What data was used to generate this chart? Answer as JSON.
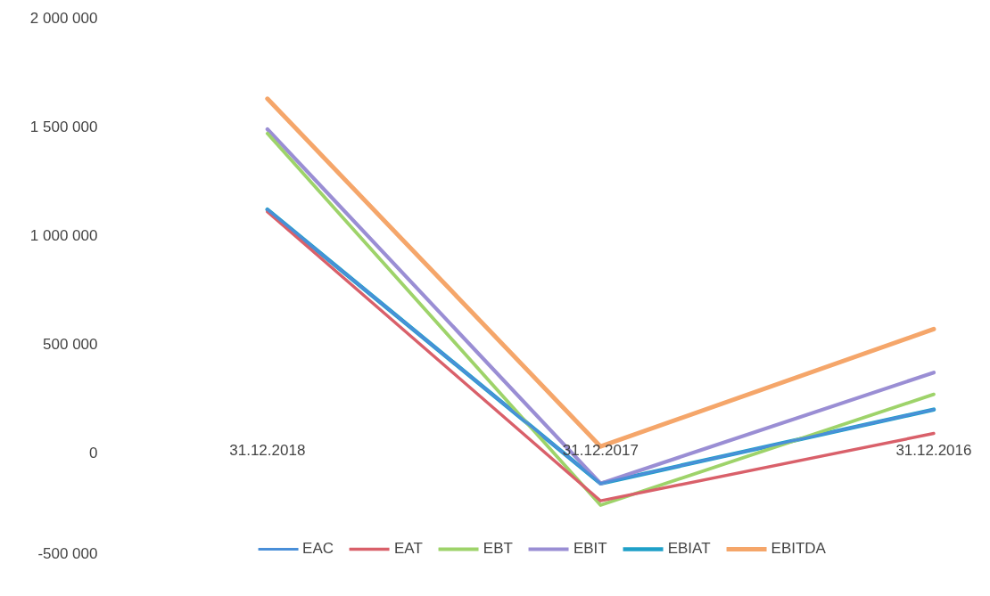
{
  "chart_data": {
    "type": "line",
    "categories": [
      "31.12.2018",
      "31.12.2017",
      "31.12.2016"
    ],
    "series": [
      {
        "name": "EAC",
        "color": "#4a8fd8",
        "values": [
          1120000,
          -140000,
          200000
        ]
      },
      {
        "name": "EAT",
        "color": "#d9606a",
        "values": [
          1110000,
          -220000,
          90000
        ]
      },
      {
        "name": "EBT",
        "color": "#9ed36a",
        "values": [
          1470000,
          -240000,
          270000
        ]
      },
      {
        "name": "EBIT",
        "color": "#9a8ed4",
        "values": [
          1490000,
          -140000,
          370000
        ]
      },
      {
        "name": "EBIAT",
        "color": "#1fa0c8",
        "values": [
          1120000,
          -140000,
          200000
        ]
      },
      {
        "name": "EBITDA",
        "color": "#f5a66a",
        "values": [
          1630000,
          30000,
          570000
        ]
      }
    ],
    "ylim": [
      -500000,
      2000000
    ],
    "yticks": [
      {
        "value": -500000,
        "label": "-500 000"
      },
      {
        "value": 0,
        "label": "0"
      },
      {
        "value": 500000,
        "label": "500 000"
      },
      {
        "value": 1000000,
        "label": "1 000 000"
      },
      {
        "value": 1500000,
        "label": "1 500 000"
      },
      {
        "value": 2000000,
        "label": "2 000 000"
      }
    ],
    "grid": false,
    "legend": "bottom",
    "marker": "none",
    "line_style": "solid"
  }
}
